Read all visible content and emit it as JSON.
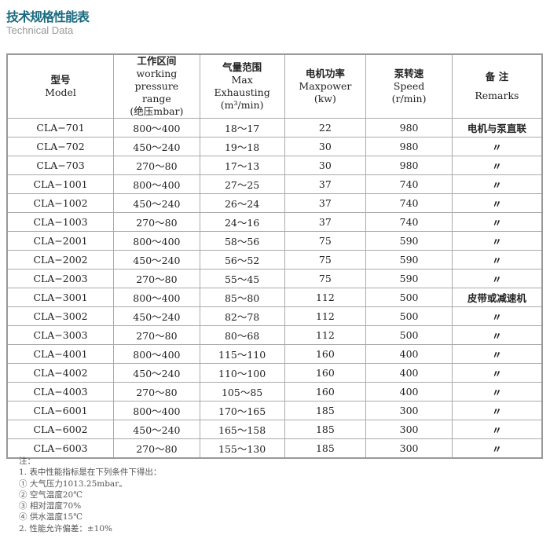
{
  "title": "技术规格性能表",
  "subtitle": "Technical Data",
  "headers": [
    {
      "cn": "型号",
      "en": [
        "Model"
      ]
    },
    {
      "cn": "工作区间",
      "en": [
        "working pressure",
        "range",
        "(绝压mbar)"
      ]
    },
    {
      "cn": "气量范围",
      "en": [
        "Max",
        "Exhausting",
        "(m³/min)"
      ]
    },
    {
      "cn": "电机功率",
      "en": [
        "Maxpower",
        "(kw)"
      ]
    },
    {
      "cn": "泵转速",
      "en": [
        "Speed",
        "(r/min)"
      ]
    },
    {
      "cn": "备 注",
      "en": [
        "Remarks"
      ]
    }
  ],
  "rows": [
    [
      "CLA−701",
      "800～400",
      "18～17",
      "22",
      "980",
      "电机与泵直联"
    ],
    [
      "CLA−702",
      "450～240",
      "19～18",
      "30",
      "980",
      "〃"
    ],
    [
      "CLA−703",
      "270～80",
      "17～13",
      "30",
      "980",
      "〃"
    ],
    [
      "CLA−1001",
      "800～400",
      "27～25",
      "37",
      "740",
      "〃"
    ],
    [
      "CLA−1002",
      "450～240",
      "26～24",
      "37",
      "740",
      "〃"
    ],
    [
      "CLA−1003",
      "270～80",
      "24～16",
      "37",
      "740",
      "〃"
    ],
    [
      "CLA−2001",
      "800～400",
      "58～56",
      "75",
      "590",
      "〃"
    ],
    [
      "CLA−2002",
      "450～240",
      "56～52",
      "75",
      "590",
      "〃"
    ],
    [
      "CLA−2003",
      "270～80",
      "55～45",
      "75",
      "590",
      "〃"
    ],
    [
      "CLA−3001",
      "800～400",
      "85～80",
      "112",
      "500",
      "皮带或减速机"
    ],
    [
      "CLA−3002",
      "450～240",
      "82～78",
      "112",
      "500",
      "〃"
    ],
    [
      "CLA−3003",
      "270～80",
      "80～68",
      "112",
      "500",
      "〃"
    ],
    [
      "CLA−4001",
      "800～400",
      "115～110",
      "160",
      "400",
      "〃"
    ],
    [
      "CLA−4002",
      "450～240",
      "110～100",
      "160",
      "400",
      "〃"
    ],
    [
      "CLA−4003",
      "270～80",
      "105～85",
      "160",
      "400",
      "〃"
    ],
    [
      "CLA−6001",
      "800～400",
      "170～165",
      "185",
      "300",
      "〃"
    ],
    [
      "CLA−6002",
      "450～240",
      "165～158",
      "185",
      "300",
      "〃"
    ],
    [
      "CLA−6003",
      "270～80",
      "155～130",
      "185",
      "300",
      "〃"
    ]
  ],
  "notes": [
    "注：",
    "1. 表中性能指标是在下列条件下得出：",
    "① 大气压力1013.25mbar。",
    "② 空气温度20℃",
    "③ 相对湿度70%",
    "④ 供水温度15℃",
    "2. 性能允许偏差：±10%"
  ]
}
